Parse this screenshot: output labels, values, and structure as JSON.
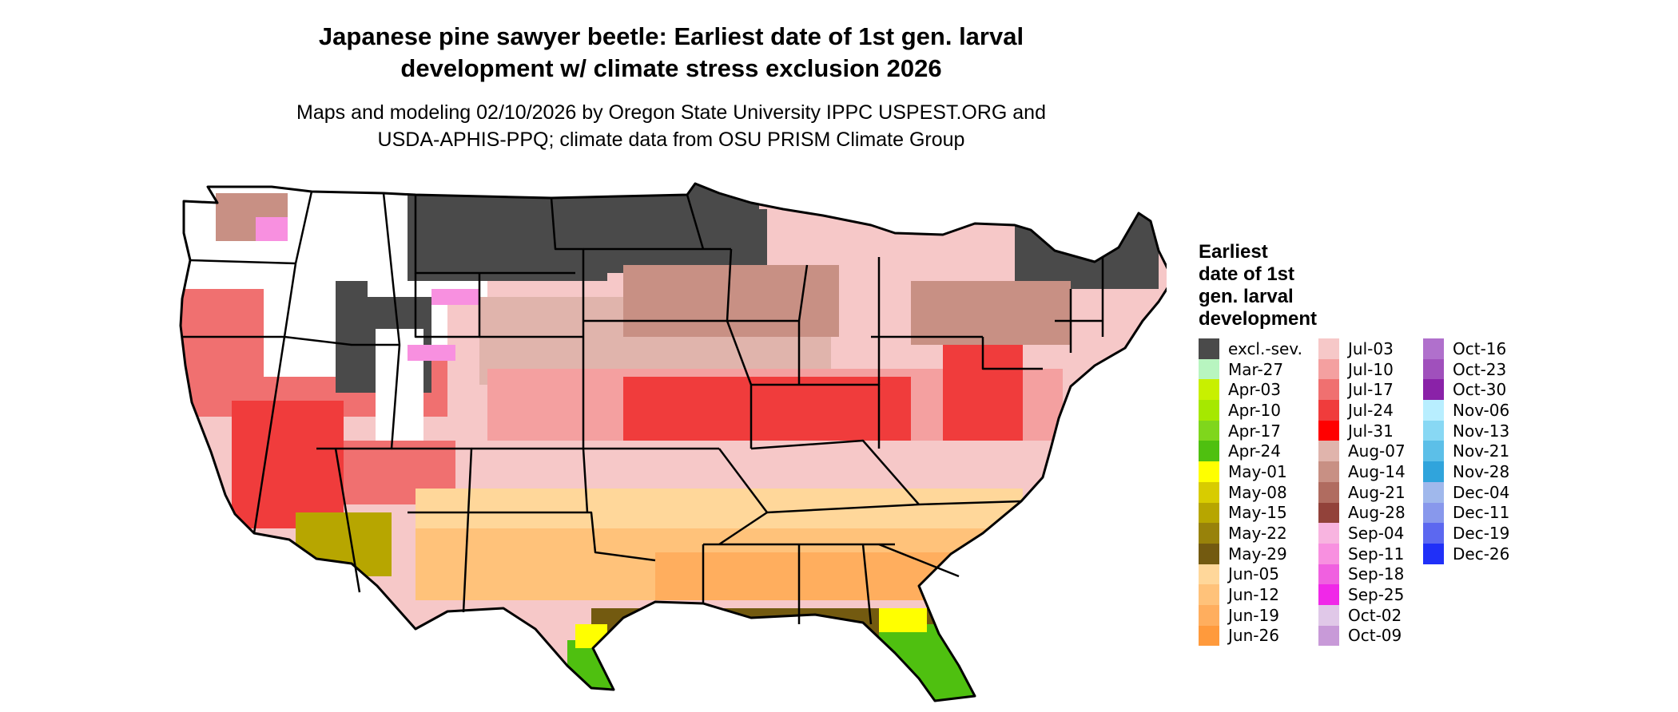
{
  "title": {
    "line1": "Japanese pine sawyer beetle: Earliest date of 1st gen. larval",
    "line2": "development w/ climate stress exclusion 2026"
  },
  "subtitle": {
    "line1": "Maps and modeling 02/10/2026 by Oregon State University IPPC USPEST.ORG and",
    "line2": "USDA-APHIS-PPQ; climate data from OSU PRISM Climate Group"
  },
  "legend": {
    "title": [
      "Earliest",
      "date of 1st",
      "gen. larval",
      "development"
    ],
    "items": [
      {
        "label": "excl.-sev.",
        "color": "#4a4a4a"
      },
      {
        "label": "Mar-27",
        "color": "#b8f5c0"
      },
      {
        "label": "Apr-03",
        "color": "#c8f000"
      },
      {
        "label": "Apr-10",
        "color": "#a6e800"
      },
      {
        "label": "Apr-17",
        "color": "#7fd61c"
      },
      {
        "label": "Apr-24",
        "color": "#4fc010"
      },
      {
        "label": "May-01",
        "color": "#ffff00"
      },
      {
        "label": "May-08",
        "color": "#d8cc00"
      },
      {
        "label": "May-15",
        "color": "#b7a600"
      },
      {
        "label": "May-22",
        "color": "#98820a"
      },
      {
        "label": "May-29",
        "color": "#735a10"
      },
      {
        "label": "Jun-05",
        "color": "#ffd79a"
      },
      {
        "label": "Jun-12",
        "color": "#ffc27a"
      },
      {
        "label": "Jun-19",
        "color": "#ffae5e"
      },
      {
        "label": "Jun-26",
        "color": "#ff9a3c"
      },
      {
        "label": "Jul-03",
        "color": "#f6c8c8"
      },
      {
        "label": "Jul-10",
        "color": "#f4a0a0"
      },
      {
        "label": "Jul-17",
        "color": "#f07070"
      },
      {
        "label": "Jul-24",
        "color": "#f03c3c"
      },
      {
        "label": "Jul-31",
        "color": "#ff0000"
      },
      {
        "label": "Aug-07",
        "color": "#e0b4ac"
      },
      {
        "label": "Aug-14",
        "color": "#c89084"
      },
      {
        "label": "Aug-21",
        "color": "#b06c60"
      },
      {
        "label": "Aug-28",
        "color": "#92423a"
      },
      {
        "label": "Sep-04",
        "color": "#f8b4e0"
      },
      {
        "label": "Sep-11",
        "color": "#f890e0"
      },
      {
        "label": "Sep-18",
        "color": "#f060e0"
      },
      {
        "label": "Sep-25",
        "color": "#f028e8"
      },
      {
        "label": "Oct-02",
        "color": "#e0c8e8"
      },
      {
        "label": "Oct-09",
        "color": "#c89ad8"
      },
      {
        "label": "Oct-16",
        "color": "#b070cc"
      },
      {
        "label": "Oct-23",
        "color": "#a050bc"
      },
      {
        "label": "Oct-30",
        "color": "#8a22a8"
      },
      {
        "label": "Nov-06",
        "color": "#b8eeff"
      },
      {
        "label": "Nov-13",
        "color": "#88d8f4"
      },
      {
        "label": "Nov-21",
        "color": "#5cbfe8"
      },
      {
        "label": "Nov-28",
        "color": "#30a4dc"
      },
      {
        "label": "Dec-04",
        "color": "#a0b8ec"
      },
      {
        "label": "Dec-11",
        "color": "#8898ec"
      },
      {
        "label": "Dec-19",
        "color": "#5c68f0"
      },
      {
        "label": "Dec-26",
        "color": "#2030f8"
      }
    ]
  }
}
